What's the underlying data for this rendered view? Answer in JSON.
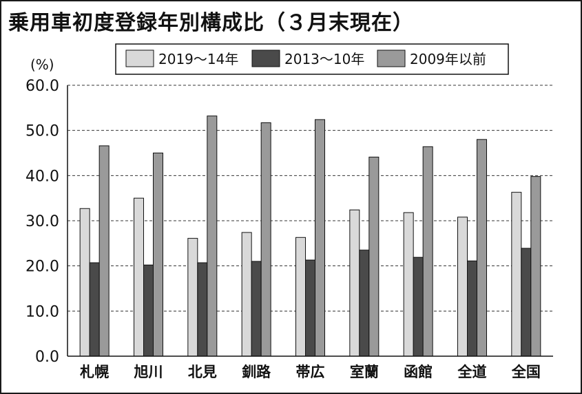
{
  "title": "乗用車初度登録年別構成比（３月末現在）",
  "chart_data": {
    "type": "bar",
    "ylabel": "(%)",
    "ylim": [
      0,
      60
    ],
    "yticks": [
      "0.0",
      "10.0",
      "20.0",
      "30.0",
      "40.0",
      "50.0",
      "60.0"
    ],
    "grid": true,
    "legend_position": "top",
    "categories": [
      "札幌",
      "旭川",
      "北見",
      "釧路",
      "帯広",
      "室蘭",
      "函館",
      "全道",
      "全国"
    ],
    "series": [
      {
        "name": "2019～14年",
        "color": "#d9d9d9",
        "values": [
          32.7,
          35.0,
          26.1,
          27.4,
          26.3,
          32.4,
          31.8,
          30.8,
          36.3
        ]
      },
      {
        "name": "2013～10年",
        "color": "#4a4a4a",
        "values": [
          20.7,
          20.2,
          20.7,
          21.0,
          21.3,
          23.5,
          21.9,
          21.1,
          23.9
        ]
      },
      {
        "name": "2009年以前",
        "color": "#9a9a9a",
        "values": [
          46.6,
          45.0,
          53.2,
          51.7,
          52.4,
          44.1,
          46.4,
          48.0,
          39.8
        ]
      }
    ]
  }
}
